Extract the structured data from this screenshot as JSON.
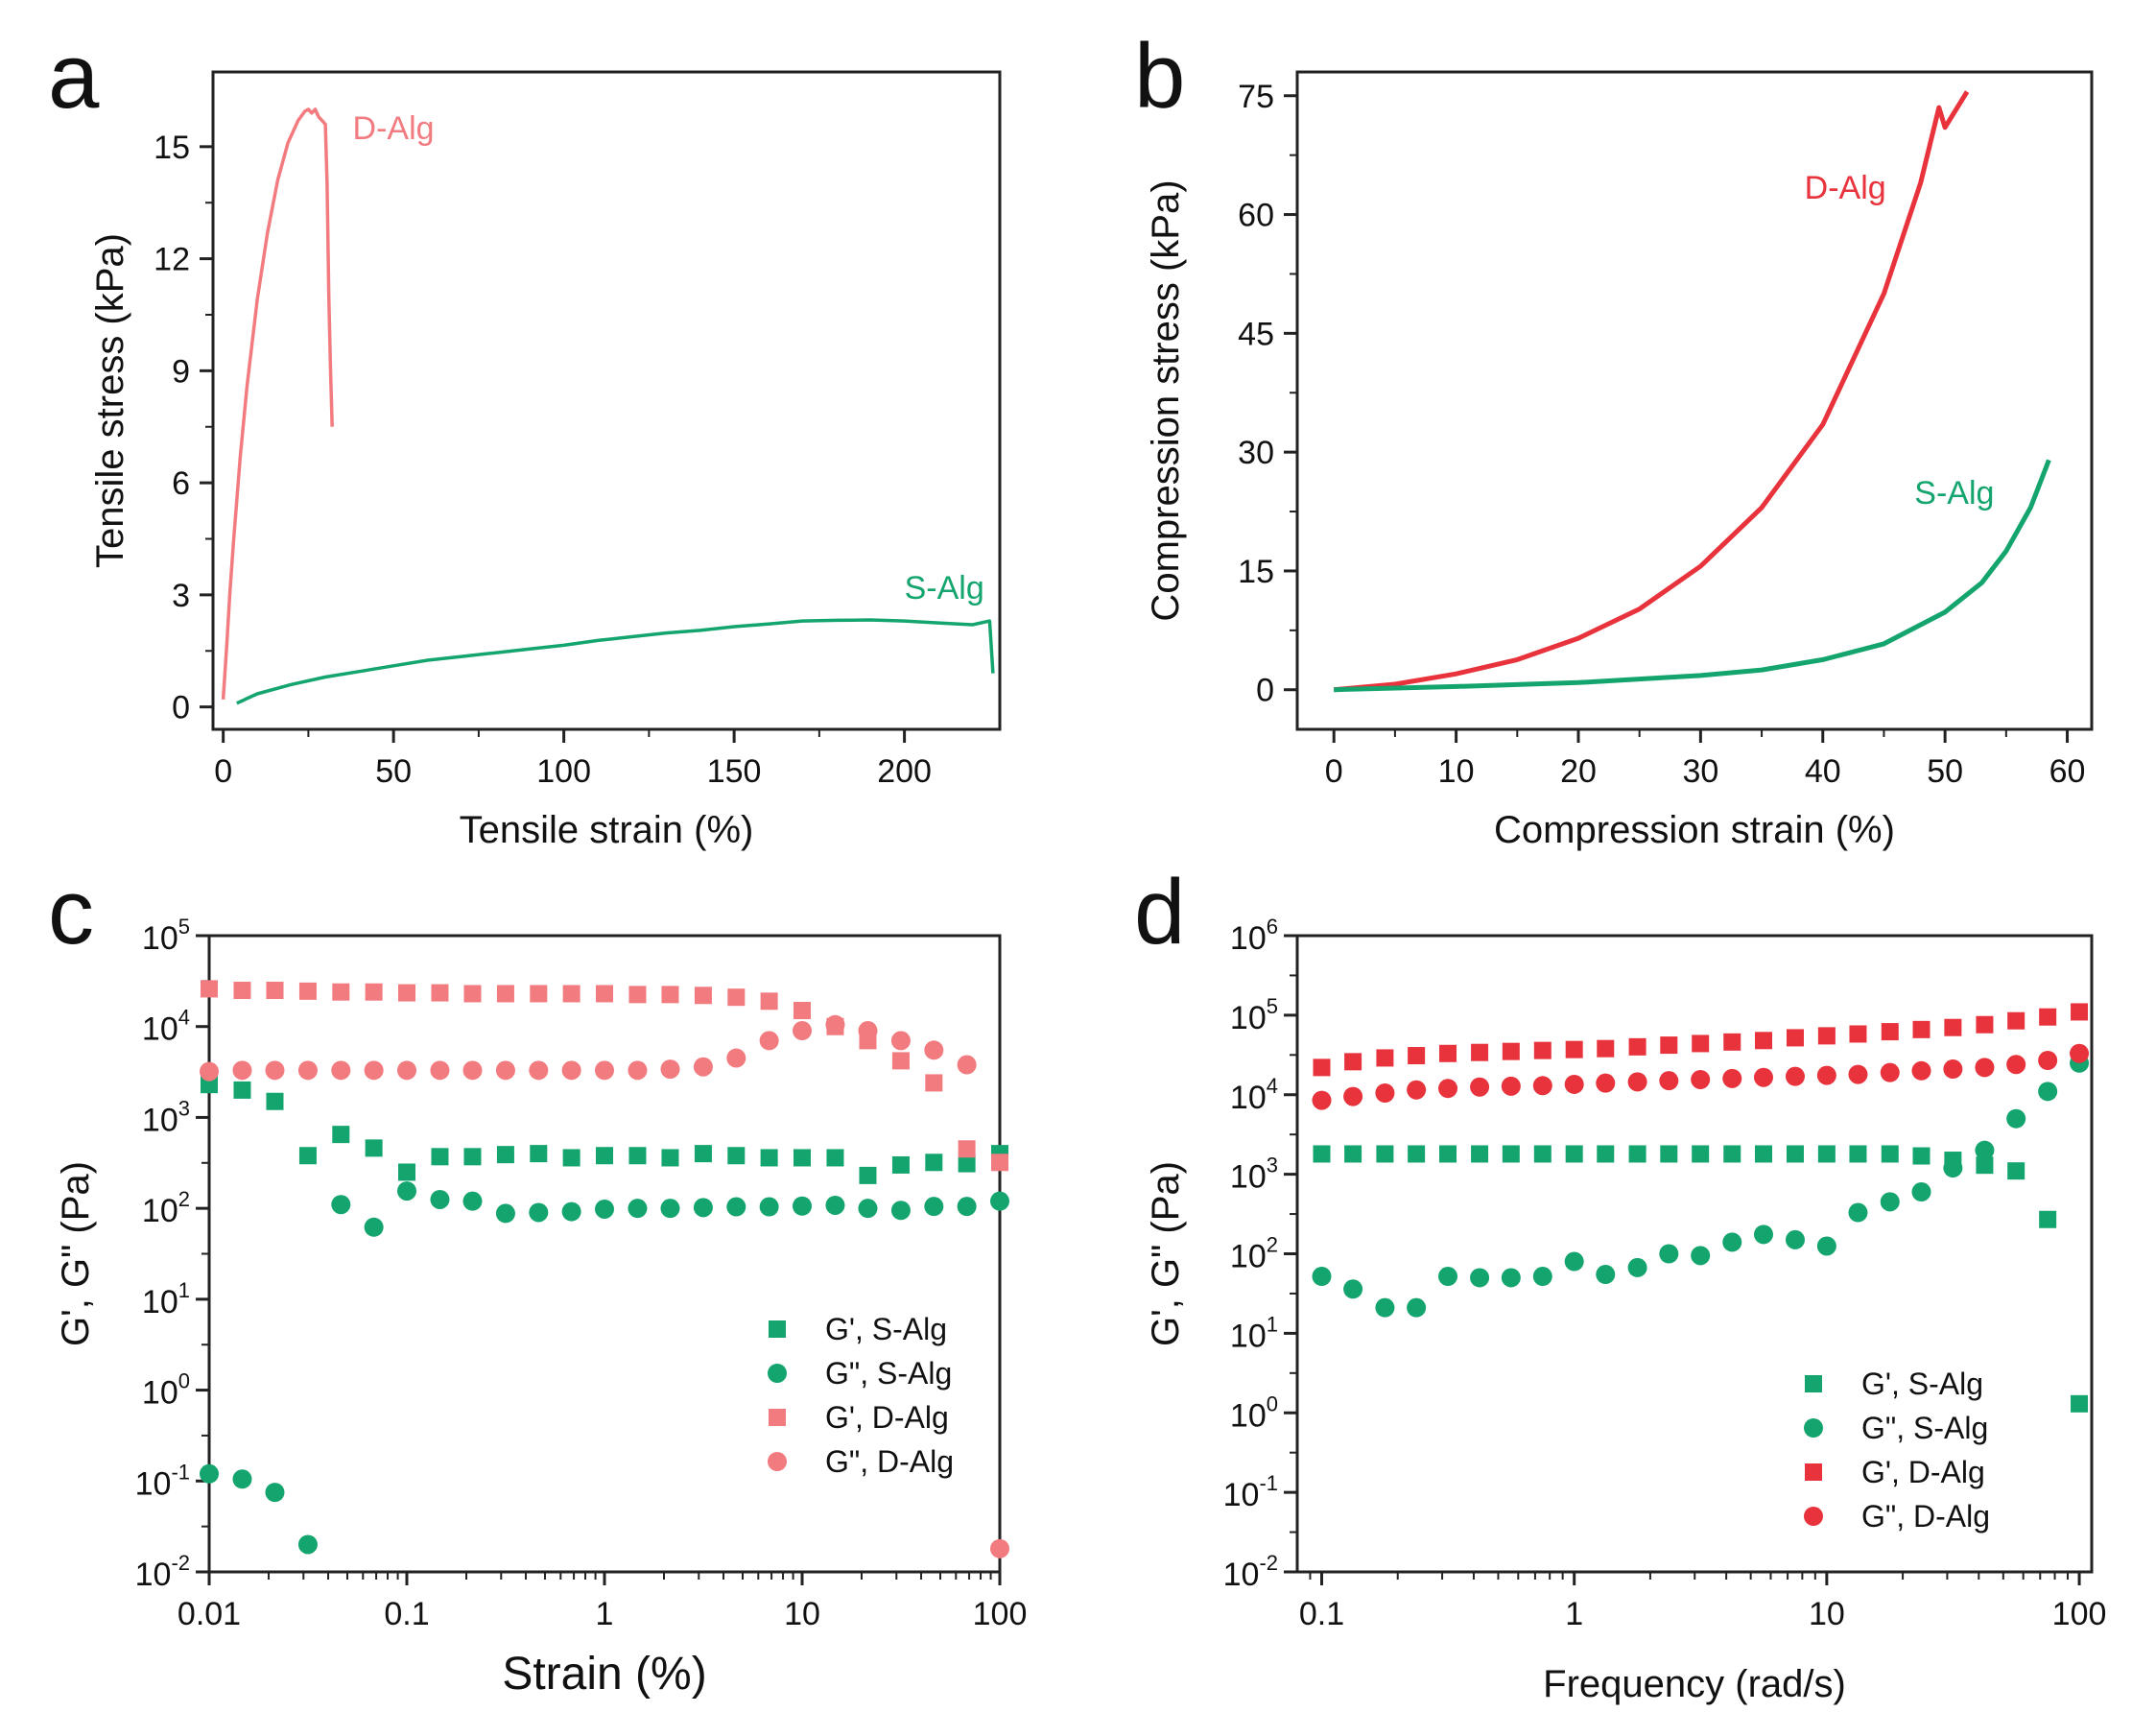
{
  "colors": {
    "red": "#e8333c",
    "pink": "#f27b80",
    "green": "#14a56e",
    "axis": "#222222"
  },
  "chart_data": [
    {
      "panel": "a",
      "type": "line",
      "xlabel": "Tensile strain (%)",
      "ylabel": "Tensile stress (kPa)",
      "xlim": [
        -3,
        228
      ],
      "ylim": [
        -0.6,
        17
      ],
      "xticks": [
        0,
        50,
        100,
        150,
        200
      ],
      "yticks": [
        0,
        3,
        6,
        9,
        12,
        15
      ],
      "grid": false,
      "series": [
        {
          "name": "D-Alg",
          "color": "pink",
          "x": [
            0,
            1,
            2,
            3,
            5,
            7,
            10,
            13,
            16,
            19,
            22,
            24,
            25,
            26,
            27,
            28,
            29,
            30,
            30.5,
            31,
            31.5,
            32
          ],
          "y": [
            0.2,
            1.6,
            3.1,
            4.4,
            6.7,
            8.6,
            10.9,
            12.7,
            14.1,
            15.1,
            15.7,
            15.95,
            16.0,
            15.9,
            16.0,
            15.8,
            15.7,
            15.6,
            14.0,
            11.0,
            9.0,
            7.5
          ]
        },
        {
          "name": "S-Alg",
          "color": "green",
          "x": [
            4,
            10,
            20,
            30,
            40,
            50,
            60,
            70,
            80,
            90,
            100,
            110,
            120,
            130,
            140,
            150,
            160,
            170,
            180,
            190,
            200,
            210,
            220,
            225,
            226
          ],
          "y": [
            0.1,
            0.35,
            0.6,
            0.8,
            0.95,
            1.1,
            1.25,
            1.35,
            1.45,
            1.55,
            1.65,
            1.78,
            1.88,
            1.98,
            2.05,
            2.15,
            2.22,
            2.3,
            2.32,
            2.33,
            2.3,
            2.25,
            2.2,
            2.3,
            0.9
          ]
        }
      ],
      "annotations": [
        {
          "text": "D-Alg",
          "series": "D-Alg",
          "x": 38,
          "y": 15.2
        },
        {
          "text": "S-Alg",
          "series": "S-Alg",
          "x": 200,
          "y": 2.9
        }
      ]
    },
    {
      "panel": "b",
      "type": "line",
      "xlabel": "Compression strain (%)",
      "ylabel": "Compression stress (kPa)",
      "xlim": [
        -3,
        62
      ],
      "ylim": [
        -5,
        78
      ],
      "xticks": [
        0,
        10,
        20,
        30,
        40,
        50,
        60
      ],
      "yticks": [
        0,
        15,
        30,
        45,
        60,
        75
      ],
      "grid": false,
      "series": [
        {
          "name": "D-Alg",
          "color": "red",
          "x": [
            0,
            5,
            10,
            15,
            20,
            25,
            30,
            35,
            40,
            45,
            48,
            49.5,
            50,
            51,
            51.8
          ],
          "y": [
            0,
            0.7,
            2.0,
            3.8,
            6.5,
            10.2,
            15.6,
            23.0,
            33.5,
            50.0,
            64.0,
            73.5,
            71.0,
            73.5,
            75.5
          ]
        },
        {
          "name": "S-Alg",
          "color": "green",
          "x": [
            0,
            10,
            20,
            30,
            35,
            40,
            45,
            50,
            53,
            55,
            57,
            58.5
          ],
          "y": [
            0,
            0.4,
            0.9,
            1.8,
            2.5,
            3.8,
            5.8,
            9.8,
            13.5,
            17.5,
            23.0,
            29.0
          ]
        }
      ],
      "annotations": [
        {
          "text": "D-Alg",
          "series": "D-Alg",
          "x": 38.5,
          "y": 62
        },
        {
          "text": "S-Alg",
          "series": "S-Alg",
          "x": 47.5,
          "y": 23.5
        }
      ]
    },
    {
      "panel": "c",
      "type": "scatter",
      "xscale": "log",
      "yscale": "log",
      "xlabel": "Strain (%)",
      "ylabel": "G', G\" (Pa)",
      "xlim": [
        0.01,
        100
      ],
      "ylim": [
        -2,
        5
      ],
      "xticks": [
        0.01,
        0.1,
        1,
        10,
        100
      ],
      "xtick_labels": [
        "0.01",
        "0.1",
        "1",
        "10",
        "100"
      ],
      "ytick_exponents": [
        -2,
        -1,
        0,
        1,
        2,
        3,
        4,
        5
      ],
      "grid": false,
      "legend": "bottom-right",
      "series": [
        {
          "name": "G', S-Alg",
          "marker": "square",
          "color": "green",
          "x": [
            0.01,
            0.0147,
            0.0215,
            0.0316,
            0.0464,
            0.0681,
            0.1,
            0.147,
            0.215,
            0.316,
            0.464,
            0.681,
            1,
            1.47,
            2.15,
            3.16,
            4.64,
            6.81,
            10,
            14.7,
            21.5,
            31.6,
            46.4,
            68.1,
            100
          ],
          "y": [
            2300,
            2000,
            1500,
            380,
            650,
            460,
            250,
            370,
            370,
            390,
            400,
            360,
            380,
            380,
            360,
            400,
            380,
            360,
            360,
            360,
            230,
            300,
            320,
            310,
            400
          ]
        },
        {
          "name": "G\", S-Alg",
          "marker": "circle",
          "color": "green",
          "x": [
            0.01,
            0.0147,
            0.0215,
            0.0316,
            0.0464,
            0.0681,
            0.1,
            0.147,
            0.215,
            0.316,
            0.464,
            0.681,
            1,
            1.47,
            2.15,
            3.16,
            4.64,
            6.81,
            10,
            14.7,
            21.5,
            31.6,
            46.4,
            68.1,
            100
          ],
          "y": [
            0.12,
            0.105,
            0.075,
            0.02,
            110,
            62,
            155,
            125,
            120,
            88,
            90,
            92,
            98,
            100,
            100,
            102,
            104,
            104,
            106,
            108,
            100,
            95,
            105,
            105,
            120
          ]
        },
        {
          "name": "G', D-Alg",
          "marker": "square",
          "color": "pink",
          "x": [
            0.01,
            0.0147,
            0.0215,
            0.0316,
            0.0464,
            0.0681,
            0.1,
            0.147,
            0.215,
            0.316,
            0.464,
            0.681,
            1,
            1.47,
            2.15,
            3.16,
            4.64,
            6.81,
            10,
            14.7,
            21.5,
            31.6,
            46.4,
            68.1,
            100
          ],
          "y": [
            26000,
            25000,
            25000,
            24500,
            24000,
            24000,
            23500,
            23500,
            23000,
            23000,
            23000,
            23000,
            23000,
            22500,
            22500,
            22000,
            21000,
            19000,
            15000,
            10000,
            7000,
            4200,
            2400,
            450,
            320
          ]
        },
        {
          "name": "G\", D-Alg",
          "marker": "circle",
          "color": "pink",
          "x": [
            0.01,
            0.0147,
            0.0215,
            0.0316,
            0.0464,
            0.0681,
            0.1,
            0.147,
            0.215,
            0.316,
            0.464,
            0.681,
            1,
            1.47,
            2.15,
            3.16,
            4.64,
            6.81,
            10,
            14.7,
            21.5,
            31.6,
            46.4,
            68.1,
            100
          ],
          "y": [
            3200,
            3300,
            3300,
            3300,
            3300,
            3300,
            3300,
            3300,
            3300,
            3300,
            3300,
            3300,
            3300,
            3300,
            3400,
            3600,
            4500,
            7000,
            9000,
            10500,
            9000,
            7000,
            5500,
            3800,
            0.018
          ]
        }
      ]
    },
    {
      "panel": "d",
      "type": "scatter",
      "xscale": "log",
      "yscale": "log",
      "xlabel": "Frequency (rad/s)",
      "ylabel": "G', G\" (Pa)",
      "xlim": [
        0.08,
        112
      ],
      "ylim": [
        -2,
        6
      ],
      "xticks": [
        0.1,
        1,
        10,
        100
      ],
      "xtick_labels": [
        "0.1",
        "1",
        "10",
        "100"
      ],
      "ytick_exponents": [
        -2,
        -1,
        0,
        1,
        2,
        3,
        4,
        5,
        6
      ],
      "grid": false,
      "legend": "bottom-right",
      "series": [
        {
          "name": "G', S-Alg",
          "marker": "square",
          "color": "green",
          "x": [
            0.1,
            0.133,
            0.178,
            0.237,
            0.316,
            0.422,
            0.562,
            0.75,
            1,
            1.33,
            1.78,
            2.37,
            3.16,
            4.22,
            5.62,
            7.5,
            10,
            13.3,
            17.8,
            23.7,
            31.6,
            42.2,
            56.2,
            75,
            100
          ],
          "y": [
            1800,
            1800,
            1800,
            1800,
            1800,
            1800,
            1800,
            1800,
            1800,
            1800,
            1800,
            1800,
            1800,
            1800,
            1800,
            1800,
            1800,
            1800,
            1800,
            1700,
            1500,
            1300,
            1100,
            270,
            1.3
          ]
        },
        {
          "name": "G\", S-Alg",
          "marker": "circle",
          "color": "green",
          "x": [
            0.1,
            0.133,
            0.178,
            0.237,
            0.316,
            0.422,
            0.562,
            0.75,
            1,
            1.33,
            1.78,
            2.37,
            3.16,
            4.22,
            5.62,
            7.5,
            10,
            13.3,
            17.8,
            23.7,
            31.6,
            42.2,
            56.2,
            75,
            100
          ],
          "y": [
            52,
            36,
            21,
            21,
            52,
            50,
            50,
            52,
            80,
            55,
            67,
            100,
            95,
            140,
            175,
            150,
            125,
            330,
            450,
            600,
            1200,
            2000,
            5000,
            11000,
            25000
          ]
        },
        {
          "name": "G', D-Alg",
          "marker": "square",
          "color": "red",
          "x": [
            0.1,
            0.133,
            0.178,
            0.237,
            0.316,
            0.422,
            0.562,
            0.75,
            1,
            1.33,
            1.78,
            2.37,
            3.16,
            4.22,
            5.62,
            7.5,
            10,
            13.3,
            17.8,
            23.7,
            31.6,
            42.2,
            56.2,
            75,
            100
          ],
          "y": [
            22000,
            26000,
            29000,
            31000,
            33000,
            34000,
            35000,
            36000,
            37000,
            38000,
            40000,
            42000,
            44000,
            46000,
            48000,
            52000,
            55000,
            58000,
            62000,
            66000,
            70000,
            76000,
            85000,
            95000,
            110000
          ]
        },
        {
          "name": "G\", D-Alg",
          "marker": "circle",
          "color": "red",
          "x": [
            0.1,
            0.133,
            0.178,
            0.237,
            0.316,
            0.422,
            0.562,
            0.75,
            1,
            1.33,
            1.78,
            2.37,
            3.16,
            4.22,
            5.62,
            7.5,
            10,
            13.3,
            17.8,
            23.7,
            31.6,
            42.2,
            56.2,
            75,
            100
          ],
          "y": [
            8500,
            9500,
            10500,
            11500,
            12000,
            12500,
            12800,
            13000,
            13500,
            14000,
            14500,
            15000,
            15500,
            16000,
            16500,
            17000,
            17500,
            18000,
            19000,
            20000,
            21000,
            22000,
            24000,
            27000,
            33000
          ]
        }
      ]
    }
  ]
}
